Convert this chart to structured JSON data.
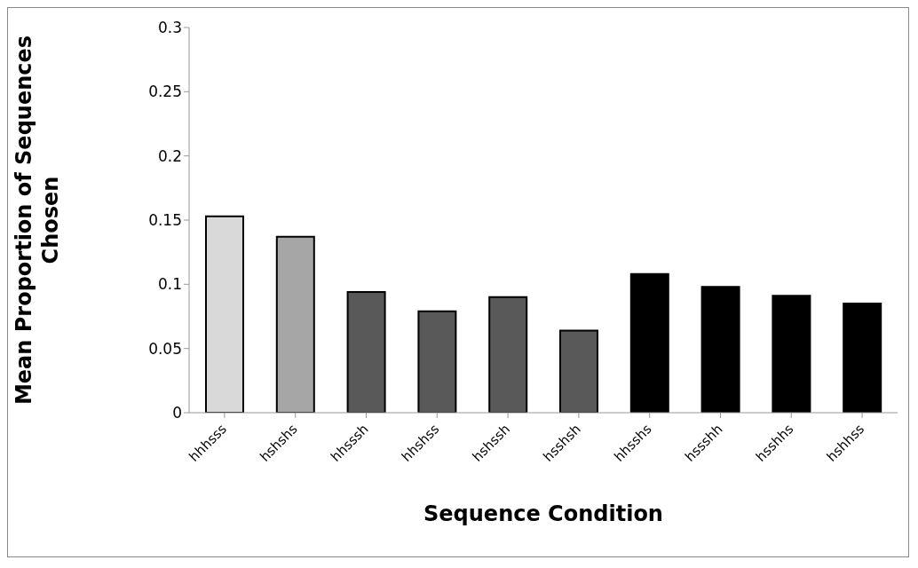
{
  "chart_data": {
    "type": "bar",
    "xlabel": "Sequence Condition",
    "ylabel": "Mean Proportion of Sequences Chosen",
    "categories": [
      "hhhsss",
      "hshshs",
      "hhsssh",
      "hhshss",
      "hshssh",
      "hsshsh",
      "hhsshs",
      "hssshh",
      "hsshhs",
      "hshhss"
    ],
    "values": [
      0.153,
      0.137,
      0.094,
      0.079,
      0.09,
      0.064,
      0.108,
      0.098,
      0.091,
      0.085
    ],
    "colors": [
      "#d9d9d9",
      "#a6a6a6",
      "#595959",
      "#595959",
      "#595959",
      "#595959",
      "#000000",
      "#000000",
      "#000000",
      "#000000"
    ],
    "ylim": [
      0,
      0.3
    ],
    "yticks": [
      0,
      0.05,
      0.1,
      0.15,
      0.2,
      0.25,
      0.3
    ],
    "grid": false,
    "legend": false
  }
}
